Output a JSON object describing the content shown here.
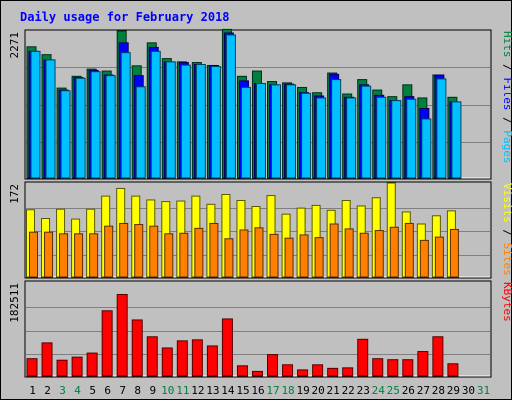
{
  "chart_data": {
    "title": "Daily usage for February 2018",
    "days": [
      "1",
      "2",
      "3",
      "4",
      "5",
      "6",
      "7",
      "8",
      "9",
      "10",
      "11",
      "12",
      "13",
      "14",
      "15",
      "16",
      "17",
      "18",
      "19",
      "20",
      "21",
      "22",
      "23",
      "24",
      "25",
      "26",
      "27",
      "28",
      "29",
      "30",
      "31"
    ],
    "weekend_days": [
      "3",
      "4",
      "10",
      "11",
      "17",
      "18",
      "24",
      "25",
      "31"
    ],
    "colors": {
      "title": "#0000ff",
      "hits": "#008040",
      "files": "#0000ff",
      "pages": "#00c0ff",
      "visits": "#ffff00",
      "sites": "#ff8000",
      "kbytes": "#ff0000",
      "weekend_label": "#008040",
      "weekday_label": "#000000"
    },
    "panels": [
      {
        "id": "top",
        "type": "bar",
        "max_label": "2271",
        "ymax": 2271,
        "legend": [
          {
            "text": "Pages",
            "color_key": "pages"
          },
          {
            "text": " / ",
            "color_key": "weekday_label"
          },
          {
            "text": "Files",
            "color_key": "files"
          },
          {
            "text": " / ",
            "color_key": "weekday_label"
          },
          {
            "text": "Hits",
            "color_key": "hits"
          }
        ],
        "series": [
          {
            "name": "Hits",
            "color_key": "hits",
            "values": [
              2000,
              1880,
              1370,
              1550,
              1660,
              1630,
              2240,
              1710,
              2060,
              1820,
              1770,
              1760,
              1715,
              2265,
              1550,
              1630,
              1470,
              1450,
              1380,
              1300,
              1600,
              1280,
              1500,
              1340,
              1240,
              1420,
              1220,
              1570,
              1230
            ]
          },
          {
            "name": "Files",
            "color_key": "files",
            "values": [
              1930,
              1800,
              1340,
              1530,
              1640,
              1570,
              2060,
              1560,
              1990,
              1770,
              1760,
              1730,
              1715,
              2210,
              1480,
              1440,
              1420,
              1430,
              1300,
              1250,
              1580,
              1230,
              1420,
              1260,
              1180,
              1240,
              1060,
              1570,
              1160
            ]
          },
          {
            "name": "Pages",
            "color_key": "pages",
            "values": [
              1930,
              1800,
              1330,
              1520,
              1620,
              1560,
              1910,
              1390,
              1930,
              1770,
              1720,
              1730,
              1700,
              2180,
              1380,
              1440,
              1420,
              1420,
              1290,
              1220,
              1500,
              1220,
              1400,
              1230,
              1180,
              1200,
              900,
              1510,
              1160
            ]
          }
        ]
      },
      {
        "id": "middle",
        "type": "bar",
        "max_label": "172",
        "ymax": 172,
        "legend": [
          {
            "text": "Sites",
            "color_key": "sites"
          },
          {
            "text": " / ",
            "color_key": "weekday_label"
          },
          {
            "text": "Visits",
            "color_key": "visits"
          }
        ],
        "series": [
          {
            "name": "Visits",
            "color_key": "visits",
            "values": [
              123,
              107,
              124,
              106,
              124,
              148,
              162,
              148,
              141,
              138,
              139,
              148,
              133,
              151,
              140,
              129,
              149,
              115,
              126,
              131,
              122,
              140,
              130,
              145,
              172,
              119,
              97,
              112,
              121
            ]
          },
          {
            "name": "Sites",
            "color_key": "sites",
            "values": [
              82,
              82,
              79,
              79,
              79,
              93,
              98,
              96,
              93,
              79,
              80,
              89,
              98,
              70,
              86,
              90,
              78,
              71,
              77,
              72,
              97,
              88,
              80,
              85,
              91,
              98,
              67,
              73,
              87
            ]
          }
        ]
      },
      {
        "id": "bottom",
        "type": "bar",
        "max_label": "182511",
        "ymax": 182511,
        "legend": [
          {
            "text": "KBytes",
            "color_key": "kbytes"
          }
        ],
        "series": [
          {
            "name": "KBytes",
            "color_key": "kbytes",
            "values": [
              34000,
              65000,
              31000,
              37000,
              45000,
              128000,
              160000,
              110000,
              77000,
              55000,
              69000,
              71000,
              59000,
              112000,
              20000,
              9000,
              42000,
              22000,
              12000,
              22000,
              15000,
              16000,
              72000,
              34000,
              32000,
              32000,
              48000,
              77000,
              24000
            ]
          }
        ]
      }
    ]
  }
}
